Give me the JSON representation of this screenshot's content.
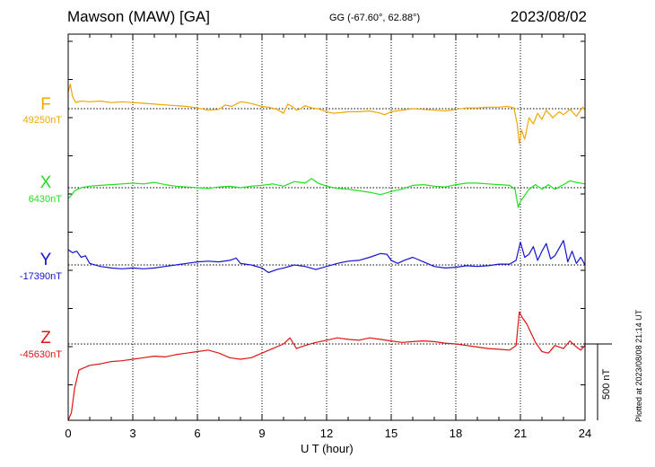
{
  "header": {
    "station": "Mawson (MAW)  [GA]",
    "coords": "GG (-67.60°,  62.88°)",
    "date": "2023/08/02"
  },
  "footer": {
    "plotted": "Plotted at 2023/08/08 21:14 UT"
  },
  "chart_data": {
    "type": "line",
    "xlabel": "U T (hour)",
    "xlim": [
      0,
      24
    ],
    "x_ticks": [
      0,
      3,
      6,
      9,
      12,
      15,
      18,
      21,
      24
    ],
    "grid": true,
    "scale_bar": {
      "label": "500 nT",
      "value_nT": 500
    },
    "series": [
      {
        "name": "F",
        "baseline_label": "49250nT",
        "baseline_nT": 49250,
        "color": "#f0a800",
        "points": [
          [
            0,
            49360
          ],
          [
            0.1,
            49410
          ],
          [
            0.2,
            49330
          ],
          [
            0.35,
            49290
          ],
          [
            0.6,
            49300
          ],
          [
            1,
            49295
          ],
          [
            1.5,
            49300
          ],
          [
            2,
            49290
          ],
          [
            2.5,
            49295
          ],
          [
            3,
            49290
          ],
          [
            3.5,
            49285
          ],
          [
            4,
            49280
          ],
          [
            4.5,
            49275
          ],
          [
            5,
            49270
          ],
          [
            5.5,
            49265
          ],
          [
            6,
            49255
          ],
          [
            6.5,
            49240
          ],
          [
            7,
            49245
          ],
          [
            7.3,
            49275
          ],
          [
            7.6,
            49265
          ],
          [
            8,
            49295
          ],
          [
            8.3,
            49290
          ],
          [
            8.6,
            49280
          ],
          [
            9,
            49265
          ],
          [
            9.3,
            49260
          ],
          [
            9.7,
            49245
          ],
          [
            10,
            49220
          ],
          [
            10.2,
            49280
          ],
          [
            10.4,
            49265
          ],
          [
            10.6,
            49240
          ],
          [
            10.8,
            49250
          ],
          [
            11,
            49270
          ],
          [
            11.3,
            49255
          ],
          [
            11.6,
            49250
          ],
          [
            12,
            49230
          ],
          [
            12.3,
            49220
          ],
          [
            12.7,
            49225
          ],
          [
            13,
            49230
          ],
          [
            13.5,
            49230
          ],
          [
            14,
            49235
          ],
          [
            14.5,
            49220
          ],
          [
            14.7,
            49210
          ],
          [
            15,
            49230
          ],
          [
            15.5,
            49240
          ],
          [
            16,
            49250
          ],
          [
            16.5,
            49245
          ],
          [
            17,
            49240
          ],
          [
            17.5,
            49235
          ],
          [
            18,
            49245
          ],
          [
            18.5,
            49255
          ],
          [
            19,
            49255
          ],
          [
            19.5,
            49260
          ],
          [
            20,
            49260
          ],
          [
            20.4,
            49265
          ],
          [
            20.7,
            49255
          ],
          [
            20.85,
            49150
          ],
          [
            20.95,
            49020
          ],
          [
            21.05,
            49110
          ],
          [
            21.2,
            49050
          ],
          [
            21.4,
            49190
          ],
          [
            21.6,
            49150
          ],
          [
            21.8,
            49220
          ],
          [
            22,
            49180
          ],
          [
            22.2,
            49240
          ],
          [
            22.5,
            49190
          ],
          [
            22.8,
            49230
          ],
          [
            23,
            49210
          ],
          [
            23.3,
            49245
          ],
          [
            23.6,
            49200
          ],
          [
            23.9,
            49260
          ],
          [
            24,
            49240
          ]
        ]
      },
      {
        "name": "X",
        "baseline_label": "6430nT",
        "baseline_nT": 6430,
        "color": "#1fe01f",
        "points": [
          [
            0,
            6360
          ],
          [
            0.15,
            6380
          ],
          [
            0.3,
            6410
          ],
          [
            0.6,
            6430
          ],
          [
            1,
            6440
          ],
          [
            1.5,
            6445
          ],
          [
            2,
            6450
          ],
          [
            2.5,
            6455
          ],
          [
            3,
            6460
          ],
          [
            3.5,
            6455
          ],
          [
            4,
            6465
          ],
          [
            4.5,
            6450
          ],
          [
            5,
            6440
          ],
          [
            5.5,
            6435
          ],
          [
            6,
            6430
          ],
          [
            6.5,
            6425
          ],
          [
            7,
            6435
          ],
          [
            7.5,
            6440
          ],
          [
            8,
            6430
          ],
          [
            8.5,
            6440
          ],
          [
            9,
            6445
          ],
          [
            9.5,
            6455
          ],
          [
            10,
            6440
          ],
          [
            10.5,
            6470
          ],
          [
            11,
            6460
          ],
          [
            11.3,
            6490
          ],
          [
            11.6,
            6460
          ],
          [
            12,
            6440
          ],
          [
            12.5,
            6425
          ],
          [
            13,
            6420
          ],
          [
            13.5,
            6410
          ],
          [
            14,
            6400
          ],
          [
            14.5,
            6385
          ],
          [
            15,
            6405
          ],
          [
            15.5,
            6420
          ],
          [
            16,
            6445
          ],
          [
            16.5,
            6450
          ],
          [
            17,
            6440
          ],
          [
            17.5,
            6435
          ],
          [
            18,
            6450
          ],
          [
            18.5,
            6460
          ],
          [
            19,
            6460
          ],
          [
            19.5,
            6455
          ],
          [
            20,
            6450
          ],
          [
            20.5,
            6445
          ],
          [
            20.75,
            6420
          ],
          [
            20.9,
            6300
          ],
          [
            21,
            6340
          ],
          [
            21.2,
            6380
          ],
          [
            21.4,
            6420
          ],
          [
            21.7,
            6450
          ],
          [
            22,
            6420
          ],
          [
            22.3,
            6450
          ],
          [
            22.6,
            6420
          ],
          [
            23,
            6450
          ],
          [
            23.3,
            6475
          ],
          [
            23.6,
            6465
          ],
          [
            24,
            6455
          ]
        ]
      },
      {
        "name": "Y",
        "baseline_label": "-17390nT",
        "baseline_nT": -17390,
        "color": "#1414d2",
        "points": [
          [
            0,
            -17290
          ],
          [
            0.2,
            -17310
          ],
          [
            0.4,
            -17300
          ],
          [
            0.6,
            -17340
          ],
          [
            0.8,
            -17330
          ],
          [
            1,
            -17380
          ],
          [
            1.5,
            -17400
          ],
          [
            2,
            -17410
          ],
          [
            2.5,
            -17415
          ],
          [
            3,
            -17410
          ],
          [
            3.5,
            -17415
          ],
          [
            4,
            -17410
          ],
          [
            4.5,
            -17400
          ],
          [
            5,
            -17390
          ],
          [
            5.5,
            -17380
          ],
          [
            6,
            -17370
          ],
          [
            6.5,
            -17365
          ],
          [
            7,
            -17370
          ],
          [
            7.5,
            -17360
          ],
          [
            7.8,
            -17345
          ],
          [
            8,
            -17380
          ],
          [
            8.5,
            -17390
          ],
          [
            9,
            -17410
          ],
          [
            9.3,
            -17440
          ],
          [
            9.7,
            -17420
          ],
          [
            10,
            -17410
          ],
          [
            10.5,
            -17390
          ],
          [
            11,
            -17400
          ],
          [
            11.5,
            -17420
          ],
          [
            12,
            -17400
          ],
          [
            12.5,
            -17380
          ],
          [
            13,
            -17365
          ],
          [
            13.5,
            -17360
          ],
          [
            14,
            -17340
          ],
          [
            14.5,
            -17315
          ],
          [
            14.8,
            -17320
          ],
          [
            15,
            -17360
          ],
          [
            15.3,
            -17380
          ],
          [
            15.6,
            -17360
          ],
          [
            16,
            -17340
          ],
          [
            16.5,
            -17370
          ],
          [
            17,
            -17400
          ],
          [
            17.5,
            -17410
          ],
          [
            18,
            -17405
          ],
          [
            18.5,
            -17395
          ],
          [
            19,
            -17400
          ],
          [
            19.5,
            -17395
          ],
          [
            20,
            -17385
          ],
          [
            20.5,
            -17385
          ],
          [
            20.8,
            -17360
          ],
          [
            21,
            -17240
          ],
          [
            21.2,
            -17340
          ],
          [
            21.4,
            -17320
          ],
          [
            21.6,
            -17270
          ],
          [
            21.8,
            -17360
          ],
          [
            22,
            -17300
          ],
          [
            22.2,
            -17250
          ],
          [
            22.4,
            -17350
          ],
          [
            22.6,
            -17330
          ],
          [
            22.8,
            -17280
          ],
          [
            23,
            -17230
          ],
          [
            23.2,
            -17370
          ],
          [
            23.4,
            -17300
          ],
          [
            23.6,
            -17380
          ],
          [
            23.8,
            -17340
          ],
          [
            24,
            -17390
          ]
        ]
      },
      {
        "name": "Z",
        "baseline_label": "-45630nT",
        "baseline_nT": -45630,
        "color": "#e01414",
        "points": [
          [
            0,
            -46170
          ],
          [
            0.15,
            -46080
          ],
          [
            0.3,
            -45920
          ],
          [
            0.5,
            -45800
          ],
          [
            1,
            -45770
          ],
          [
            1.5,
            -45760
          ],
          [
            2,
            -45745
          ],
          [
            2.5,
            -45740
          ],
          [
            3,
            -45730
          ],
          [
            3.5,
            -45720
          ],
          [
            4,
            -45710
          ],
          [
            4.5,
            -45715
          ],
          [
            5,
            -45700
          ],
          [
            5.5,
            -45690
          ],
          [
            6,
            -45680
          ],
          [
            6.5,
            -45670
          ],
          [
            7,
            -45690
          ],
          [
            7.5,
            -45720
          ],
          [
            8,
            -45730
          ],
          [
            8.5,
            -45720
          ],
          [
            9,
            -45690
          ],
          [
            9.5,
            -45660
          ],
          [
            10,
            -45630
          ],
          [
            10.3,
            -45590
          ],
          [
            10.6,
            -45660
          ],
          [
            11,
            -45640
          ],
          [
            11.5,
            -45620
          ],
          [
            12,
            -45605
          ],
          [
            12.5,
            -45590
          ],
          [
            13,
            -45600
          ],
          [
            13.5,
            -45605
          ],
          [
            14,
            -45590
          ],
          [
            14.5,
            -45600
          ],
          [
            15,
            -45610
          ],
          [
            15.5,
            -45620
          ],
          [
            16,
            -45615
          ],
          [
            16.5,
            -45610
          ],
          [
            17,
            -45615
          ],
          [
            17.5,
            -45625
          ],
          [
            18,
            -45630
          ],
          [
            18.5,
            -45640
          ],
          [
            19,
            -45650
          ],
          [
            19.5,
            -45660
          ],
          [
            20,
            -45665
          ],
          [
            20.5,
            -45670
          ],
          [
            20.8,
            -45640
          ],
          [
            20.95,
            -45420
          ],
          [
            21.1,
            -45460
          ],
          [
            21.3,
            -45500
          ],
          [
            21.5,
            -45560
          ],
          [
            21.7,
            -45620
          ],
          [
            22,
            -45680
          ],
          [
            22.3,
            -45690
          ],
          [
            22.6,
            -45640
          ],
          [
            23,
            -45660
          ],
          [
            23.3,
            -45610
          ],
          [
            23.6,
            -45650
          ],
          [
            23.8,
            -45670
          ],
          [
            24,
            -45640
          ]
        ]
      }
    ]
  }
}
